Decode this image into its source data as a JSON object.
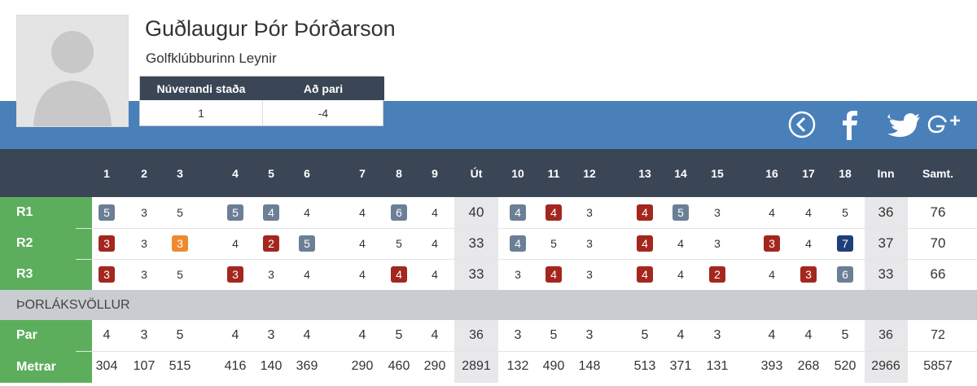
{
  "header": {
    "name": "Guðlaugur Þór Þórðarson",
    "club": "Golfklúbburinn Leynir"
  },
  "status": {
    "headers": [
      "Núverandi staða",
      "Að pari"
    ],
    "values": [
      1,
      -4
    ]
  },
  "scorecard": {
    "columns": [
      "1",
      "2",
      "3",
      "4",
      "5",
      "6",
      "7",
      "8",
      "9",
      "Út",
      "10",
      "11",
      "12",
      "13",
      "14",
      "15",
      "16",
      "17",
      "18",
      "Inn",
      "Samt."
    ],
    "rounds": [
      {
        "label": "R1",
        "scores": [
          5,
          3,
          5,
          5,
          4,
          4,
          4,
          6,
          4,
          40,
          4,
          4,
          3,
          4,
          5,
          3,
          4,
          4,
          5,
          36,
          76
        ]
      },
      {
        "label": "R2",
        "scores": [
          3,
          3,
          3,
          4,
          2,
          5,
          4,
          5,
          4,
          33,
          4,
          5,
          3,
          4,
          4,
          3,
          3,
          4,
          7,
          37,
          70
        ]
      },
      {
        "label": "R3",
        "scores": [
          3,
          3,
          5,
          3,
          3,
          4,
          4,
          4,
          4,
          33,
          3,
          4,
          3,
          4,
          4,
          2,
          4,
          3,
          6,
          33,
          66
        ]
      }
    ],
    "course": "ÞORLÁKSVÖLLUR",
    "par": {
      "label": "Par",
      "values": [
        4,
        3,
        5,
        4,
        3,
        4,
        4,
        5,
        4,
        36,
        3,
        5,
        3,
        5,
        4,
        3,
        4,
        4,
        5,
        36,
        72
      ]
    },
    "meters": {
      "label": "Metrar",
      "values": [
        304,
        107,
        515,
        416,
        140,
        369,
        290,
        460,
        290,
        2891,
        132,
        490,
        148,
        513,
        371,
        131,
        393,
        268,
        520,
        2966,
        5857
      ]
    }
  }
}
